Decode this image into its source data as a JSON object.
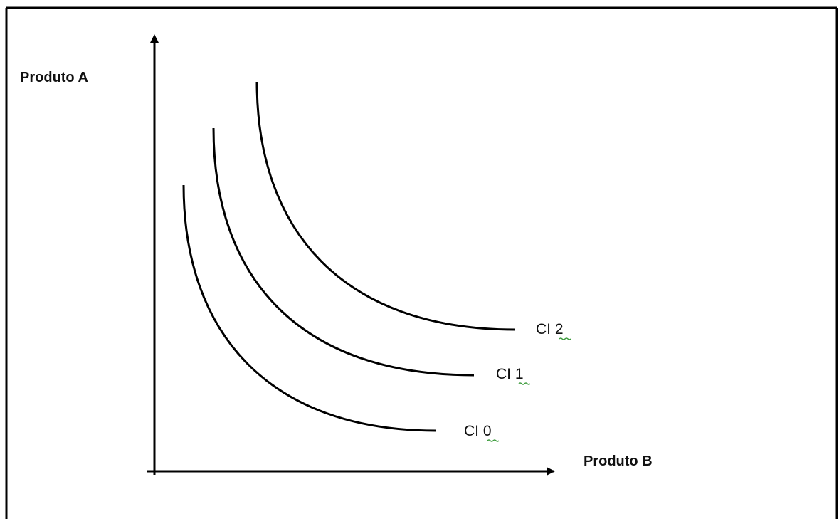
{
  "diagram": {
    "y_axis_label": "Produto A",
    "x_axis_label": "Produto B",
    "curves": [
      {
        "label": "CI 0"
      },
      {
        "label": "CI 1"
      },
      {
        "label": "CI 2"
      }
    ]
  }
}
